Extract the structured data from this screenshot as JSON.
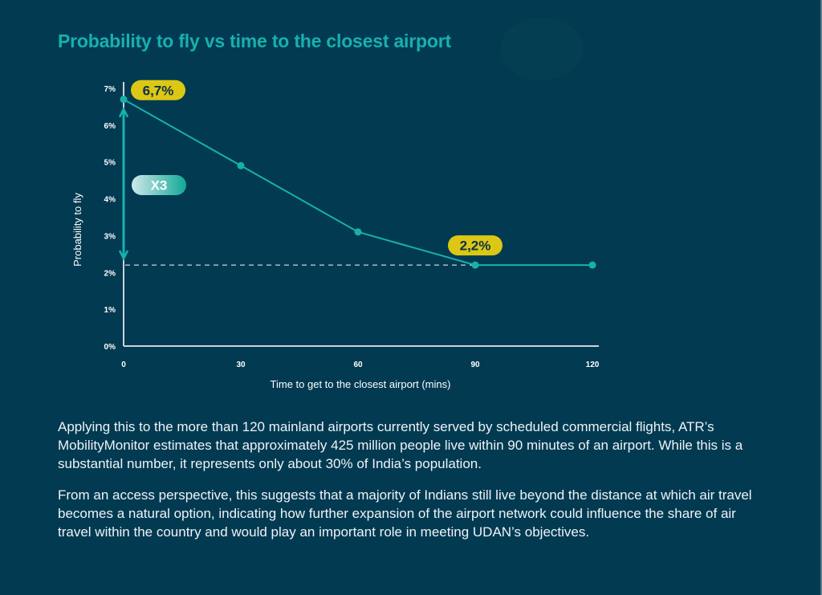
{
  "title": "Probability to fly vs time to the closest airport",
  "chart_data": {
    "type": "line",
    "title": "Probability to fly vs time to the closest airport",
    "xlabel": "Time to get to the closest airport (mins)",
    "ylabel": "Probability to fly",
    "x": [
      0,
      30,
      60,
      90,
      120
    ],
    "series": [
      {
        "name": "Probability to fly",
        "values": [
          6.7,
          4.9,
          3.1,
          2.2,
          2.2
        ],
        "color": "#17b1ad"
      }
    ],
    "xticks": [
      "0",
      "30",
      "60",
      "90",
      "120"
    ],
    "yticks": [
      "0%",
      "1%",
      "2%",
      "3%",
      "4%",
      "5%",
      "6%",
      "7%"
    ],
    "xlim": [
      0,
      120
    ],
    "ylim": [
      0,
      7
    ],
    "grid": false,
    "annotations": [
      {
        "text": "6,7%",
        "x": 0,
        "y": 6.7,
        "color": "#dcc814"
      },
      {
        "text": "2,2%",
        "x": 90,
        "y": 2.2,
        "color": "#dcc814"
      },
      {
        "text": "X3",
        "type": "double-arrow",
        "from": 6.7,
        "to": 2.2
      }
    ],
    "reference_line": {
      "y": 2.2,
      "style": "dashed"
    }
  },
  "paragraphs": [
    "Applying this to the more than 120 mainland airports currently served by scheduled commercial flights, ATR’s MobilityMonitor estimates that approximately 425 million people live within 90 minutes of an airport. While this is a substantial number, it represents only about 30% of India’s population.",
    "From an access perspective, this suggests that a majority of Indians still live beyond the distance at which air travel becomes a natural option, indicating how further expansion of the airport network could influence the share of air travel within the country and would play an important role in meeting UDAN’s objectives."
  ]
}
